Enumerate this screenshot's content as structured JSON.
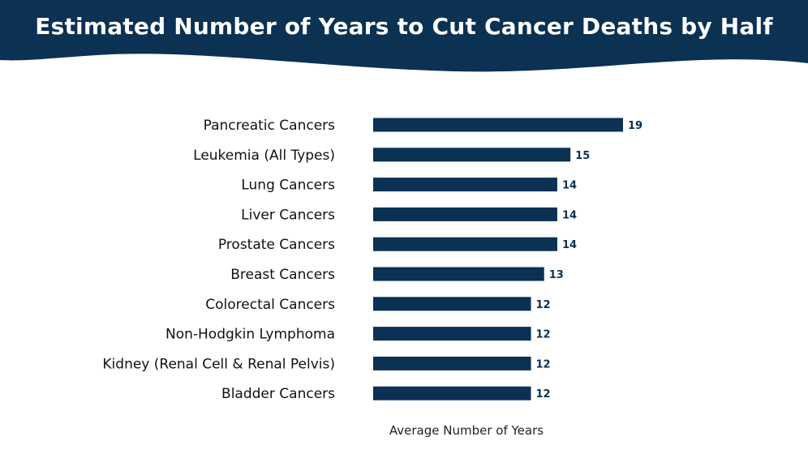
{
  "colors": {
    "header_bg": "#0b3153",
    "bar": "#0b3153",
    "value_text": "#0b3153",
    "background": "#ffffff"
  },
  "chart_data": {
    "type": "bar",
    "orientation": "horizontal",
    "title": "Estimated Number of Years to Cut Cancer Deaths by Half",
    "xlabel": "Average Number of Years",
    "ylabel": "",
    "categories": [
      "Pancreatic Cancers",
      "Leukemia (All Types)",
      "Lung Cancers",
      "Liver Cancers",
      "Prostate Cancers",
      "Breast Cancers",
      "Colorectal Cancers",
      "Non-Hodgkin Lymphoma",
      "Kidney (Renal Cell & Renal Pelvis)",
      "Bladder Cancers"
    ],
    "values": [
      19,
      15,
      14,
      14,
      14,
      13,
      12,
      12,
      12,
      12
    ],
    "xlim": [
      0,
      19
    ],
    "grid": false,
    "legend": "none",
    "data_labels": true
  }
}
